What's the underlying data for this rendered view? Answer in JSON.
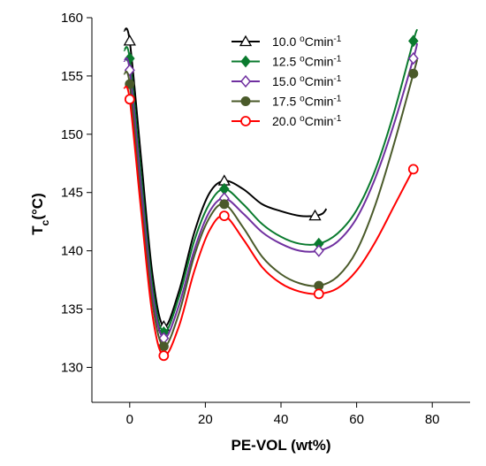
{
  "chart_data": {
    "type": "line",
    "xlabel": "PE-VOL (wt%)",
    "ylabel_main": "T",
    "ylabel_sub": "c",
    "ylabel_rest": "(°C)",
    "xlim": [
      -10,
      90
    ],
    "ylim": [
      127,
      160
    ],
    "xticks": [
      0,
      20,
      40,
      60,
      80
    ],
    "yticks": [
      130,
      135,
      140,
      145,
      150,
      155,
      160
    ],
    "legend_position": "top-center",
    "series": [
      {
        "name_prefix": "10.0 ",
        "name_sup1": "o",
        "name_mid": "Cmin",
        "name_sup2": "-1",
        "color": "#000000",
        "marker": "triangle-open",
        "points": [
          [
            0,
            158
          ],
          [
            9,
            133.5
          ],
          [
            25,
            146
          ],
          [
            49,
            143
          ]
        ],
        "curve": [
          [
            -1.5,
            158.9
          ],
          [
            0,
            158
          ],
          [
            3,
            148
          ],
          [
            6,
            138
          ],
          [
            9,
            133.5
          ],
          [
            13,
            136.5
          ],
          [
            17,
            141.5
          ],
          [
            21,
            144.9
          ],
          [
            25,
            146
          ],
          [
            30,
            145.3
          ],
          [
            35,
            144
          ],
          [
            40,
            143.4
          ],
          [
            45,
            143
          ],
          [
            49,
            143
          ],
          [
            51,
            143.2
          ],
          [
            52,
            143.6
          ]
        ]
      },
      {
        "name_prefix": "12.5 ",
        "name_sup1": "o",
        "name_mid": "Cmin",
        "name_sup2": "-1",
        "color": "#0a7a2e",
        "marker": "diamond-filled",
        "points": [
          [
            0,
            156.5
          ],
          [
            9,
            133
          ],
          [
            25,
            145.3
          ],
          [
            50,
            140.6
          ],
          [
            75,
            158
          ]
        ],
        "curve": [
          [
            -1.5,
            157.2
          ],
          [
            0,
            156.5
          ],
          [
            3,
            146.5
          ],
          [
            6,
            137
          ],
          [
            9,
            133
          ],
          [
            13,
            136
          ],
          [
            17,
            140.8
          ],
          [
            21,
            144
          ],
          [
            25,
            145.3
          ],
          [
            30,
            144
          ],
          [
            35,
            142.3
          ],
          [
            40,
            141.2
          ],
          [
            45,
            140.6
          ],
          [
            50,
            140.6
          ],
          [
            55,
            141.5
          ],
          [
            60,
            143.5
          ],
          [
            65,
            147
          ],
          [
            70,
            152
          ],
          [
            75,
            158
          ],
          [
            76,
            159
          ]
        ]
      },
      {
        "name_prefix": "15.0 ",
        "name_sup1": "o",
        "name_mid": "Cmin",
        "name_sup2": "-1",
        "color": "#7030a0",
        "marker": "diamond-open",
        "points": [
          [
            0,
            155.5
          ],
          [
            9,
            132.5
          ],
          [
            25,
            144.5
          ],
          [
            50,
            140
          ],
          [
            75,
            156.5
          ]
        ],
        "curve": [
          [
            -1.5,
            156.3
          ],
          [
            0,
            155.5
          ],
          [
            3,
            145.5
          ],
          [
            6,
            136.3
          ],
          [
            9,
            132.5
          ],
          [
            13,
            135.3
          ],
          [
            17,
            140
          ],
          [
            21,
            143.3
          ],
          [
            25,
            144.5
          ],
          [
            30,
            143.2
          ],
          [
            35,
            141.6
          ],
          [
            40,
            140.6
          ],
          [
            45,
            140
          ],
          [
            50,
            140
          ],
          [
            55,
            140.8
          ],
          [
            60,
            142.8
          ],
          [
            65,
            146.3
          ],
          [
            70,
            151
          ],
          [
            75,
            156.5
          ],
          [
            76,
            157.8
          ]
        ]
      },
      {
        "name_prefix": "17.5 ",
        "name_sup1": "o",
        "name_mid": "Cmin",
        "name_sup2": "-1",
        "color": "#4a5a2a",
        "marker": "circle-filled",
        "points": [
          [
            0,
            154.3
          ],
          [
            9,
            131.8
          ],
          [
            25,
            144
          ],
          [
            50,
            137
          ],
          [
            75,
            155.2
          ]
        ],
        "curve": [
          [
            -1.5,
            155.2
          ],
          [
            0,
            154.3
          ],
          [
            3,
            144.3
          ],
          [
            6,
            135.5
          ],
          [
            9,
            131.8
          ],
          [
            13,
            134.6
          ],
          [
            17,
            139.5
          ],
          [
            21,
            142.8
          ],
          [
            25,
            144
          ],
          [
            30,
            142
          ],
          [
            35,
            139.5
          ],
          [
            40,
            138
          ],
          [
            45,
            137.2
          ],
          [
            50,
            137
          ],
          [
            55,
            137.8
          ],
          [
            60,
            140
          ],
          [
            65,
            144
          ],
          [
            70,
            149.3
          ],
          [
            75,
            155.2
          ],
          [
            76,
            156.4
          ]
        ]
      },
      {
        "name_prefix": "20.0 ",
        "name_sup1": "o",
        "name_mid": "Cmin",
        "name_sup2": "-1",
        "color": "#ff0000",
        "marker": "circle-open",
        "points": [
          [
            0,
            153
          ],
          [
            9,
            131
          ],
          [
            25,
            143
          ],
          [
            50,
            136.3
          ],
          [
            75,
            147
          ]
        ],
        "curve": [
          [
            -1.5,
            154
          ],
          [
            0,
            153
          ],
          [
            3,
            143.5
          ],
          [
            6,
            134.5
          ],
          [
            9,
            131
          ],
          [
            13,
            133.5
          ],
          [
            17,
            138.2
          ],
          [
            21,
            141.7
          ],
          [
            25,
            143
          ],
          [
            30,
            141
          ],
          [
            35,
            138.6
          ],
          [
            40,
            137.2
          ],
          [
            45,
            136.5
          ],
          [
            50,
            136.3
          ],
          [
            55,
            136.8
          ],
          [
            60,
            138.3
          ],
          [
            65,
            140.8
          ],
          [
            70,
            143.9
          ],
          [
            75,
            147
          ]
        ]
      }
    ]
  }
}
